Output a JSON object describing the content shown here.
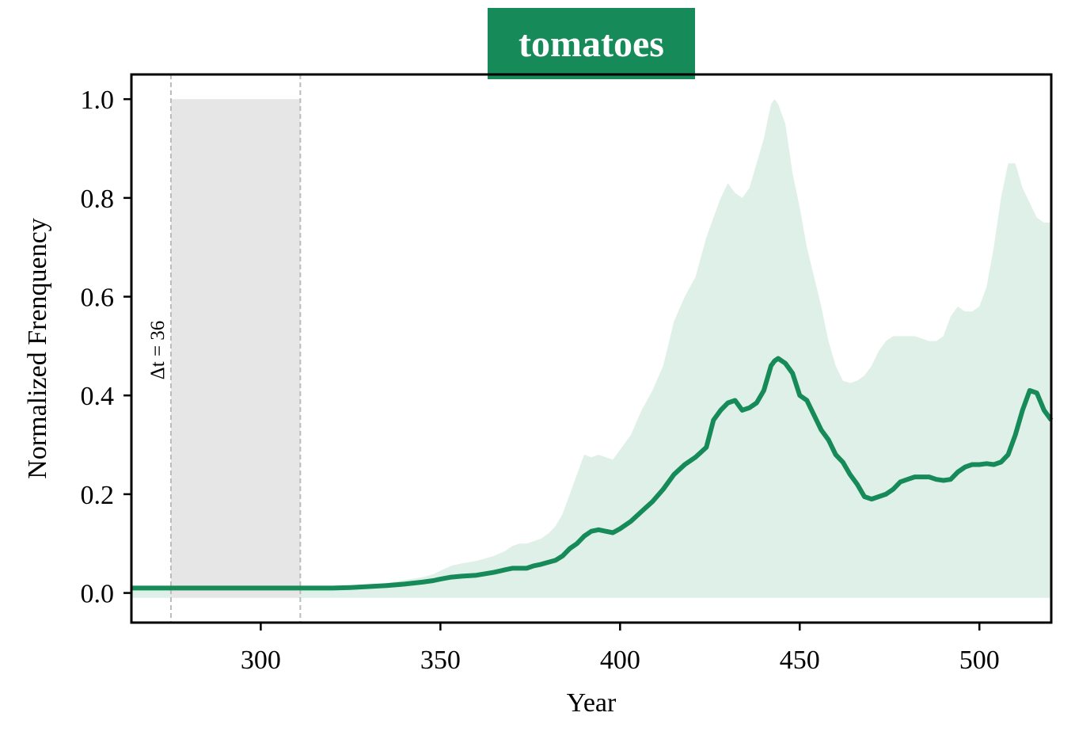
{
  "chart_data": {
    "type": "area",
    "title": "tomatoes",
    "xlabel": "Year",
    "ylabel": "Normalized Frenquency",
    "xlim": [
      264,
      520
    ],
    "ylim": [
      -0.06,
      1.05
    ],
    "xticks": [
      300,
      350,
      400,
      450,
      500
    ],
    "yticks": [
      0.0,
      0.2,
      0.4,
      0.6,
      0.8,
      1.0
    ],
    "ytick_labels": [
      "0.0",
      "0.2",
      "0.4",
      "0.6",
      "0.8",
      "1.0"
    ],
    "grid": false,
    "highlight_window": {
      "x_start": 275,
      "x_end": 311,
      "label": "Δt = 36"
    },
    "colors": {
      "line": "#168a58",
      "band": "#dff0e8",
      "window": "#e6e6e6",
      "title_bg": "#168a58"
    },
    "series": [
      {
        "x": [
          264,
          270,
          275,
          280,
          285,
          290,
          295,
          300,
          305,
          310,
          315,
          320,
          325,
          330,
          335,
          340,
          345,
          348,
          350,
          353,
          356,
          360,
          365,
          368,
          370,
          372,
          374,
          376,
          378,
          380,
          382,
          384,
          386,
          388,
          390,
          392,
          394,
          396,
          398,
          400,
          403,
          406,
          409,
          412,
          415,
          418,
          421,
          424,
          426,
          428,
          430,
          432,
          434,
          436,
          438,
          440,
          442,
          443,
          444,
          446,
          448,
          450,
          452,
          454,
          456,
          458,
          460,
          462,
          464,
          466,
          468,
          470,
          472,
          474,
          476,
          478,
          480,
          482,
          484,
          486,
          488,
          490,
          492,
          494,
          496,
          498,
          500,
          502,
          504,
          506,
          508,
          510,
          512,
          514,
          516,
          518,
          520
        ],
        "values": [
          0.01,
          0.01,
          0.01,
          0.01,
          0.01,
          0.01,
          0.01,
          0.01,
          0.01,
          0.01,
          0.01,
          0.01,
          0.011,
          0.013,
          0.015,
          0.018,
          0.022,
          0.025,
          0.028,
          0.032,
          0.034,
          0.036,
          0.042,
          0.047,
          0.05,
          0.05,
          0.05,
          0.055,
          0.058,
          0.062,
          0.066,
          0.075,
          0.09,
          0.1,
          0.115,
          0.125,
          0.128,
          0.125,
          0.122,
          0.13,
          0.145,
          0.165,
          0.185,
          0.21,
          0.24,
          0.26,
          0.275,
          0.295,
          0.35,
          0.37,
          0.385,
          0.39,
          0.37,
          0.375,
          0.385,
          0.41,
          0.46,
          0.47,
          0.475,
          0.465,
          0.445,
          0.4,
          0.39,
          0.36,
          0.33,
          0.31,
          0.28,
          0.265,
          0.24,
          0.22,
          0.195,
          0.19,
          0.195,
          0.2,
          0.21,
          0.225,
          0.23,
          0.235,
          0.235,
          0.235,
          0.23,
          0.228,
          0.23,
          0.245,
          0.255,
          0.26,
          0.26,
          0.262,
          0.26,
          0.265,
          0.28,
          0.32,
          0.37,
          0.41,
          0.405,
          0.37,
          0.35
        ]
      },
      {
        "x": [
          264,
          270,
          275,
          280,
          285,
          290,
          295,
          300,
          305,
          310,
          315,
          320,
          325,
          330,
          335,
          340,
          345,
          348,
          350,
          353,
          356,
          360,
          365,
          368,
          370,
          372,
          374,
          376,
          378,
          380,
          382,
          384,
          386,
          388,
          390,
          392,
          394,
          396,
          398,
          400,
          403,
          406,
          409,
          412,
          415,
          418,
          421,
          424,
          426,
          428,
          430,
          432,
          434,
          436,
          438,
          440,
          442,
          443,
          444,
          446,
          448,
          450,
          452,
          454,
          456,
          458,
          460,
          462,
          464,
          466,
          468,
          470,
          472,
          474,
          476,
          478,
          480,
          482,
          484,
          486,
          488,
          490,
          492,
          494,
          496,
          498,
          500,
          502,
          504,
          506,
          508,
          510,
          512,
          514,
          516,
          518,
          520
        ],
        "values": [
          0.01,
          0.01,
          0.01,
          0.01,
          0.01,
          0.01,
          0.01,
          0.01,
          0.01,
          0.01,
          0.01,
          0.012,
          0.014,
          0.016,
          0.02,
          0.026,
          0.032,
          0.038,
          0.045,
          0.055,
          0.06,
          0.065,
          0.075,
          0.085,
          0.095,
          0.1,
          0.1,
          0.105,
          0.11,
          0.12,
          0.135,
          0.16,
          0.2,
          0.24,
          0.28,
          0.275,
          0.28,
          0.275,
          0.27,
          0.29,
          0.32,
          0.37,
          0.41,
          0.46,
          0.55,
          0.6,
          0.64,
          0.72,
          0.76,
          0.8,
          0.83,
          0.81,
          0.8,
          0.82,
          0.87,
          0.92,
          0.99,
          1.0,
          0.99,
          0.95,
          0.85,
          0.78,
          0.7,
          0.64,
          0.58,
          0.51,
          0.46,
          0.43,
          0.425,
          0.43,
          0.44,
          0.46,
          0.49,
          0.51,
          0.52,
          0.52,
          0.52,
          0.52,
          0.515,
          0.51,
          0.51,
          0.52,
          0.56,
          0.58,
          0.57,
          0.57,
          0.58,
          0.62,
          0.7,
          0.8,
          0.87,
          0.87,
          0.82,
          0.79,
          0.76,
          0.75,
          0.75
        ]
      }
    ]
  }
}
